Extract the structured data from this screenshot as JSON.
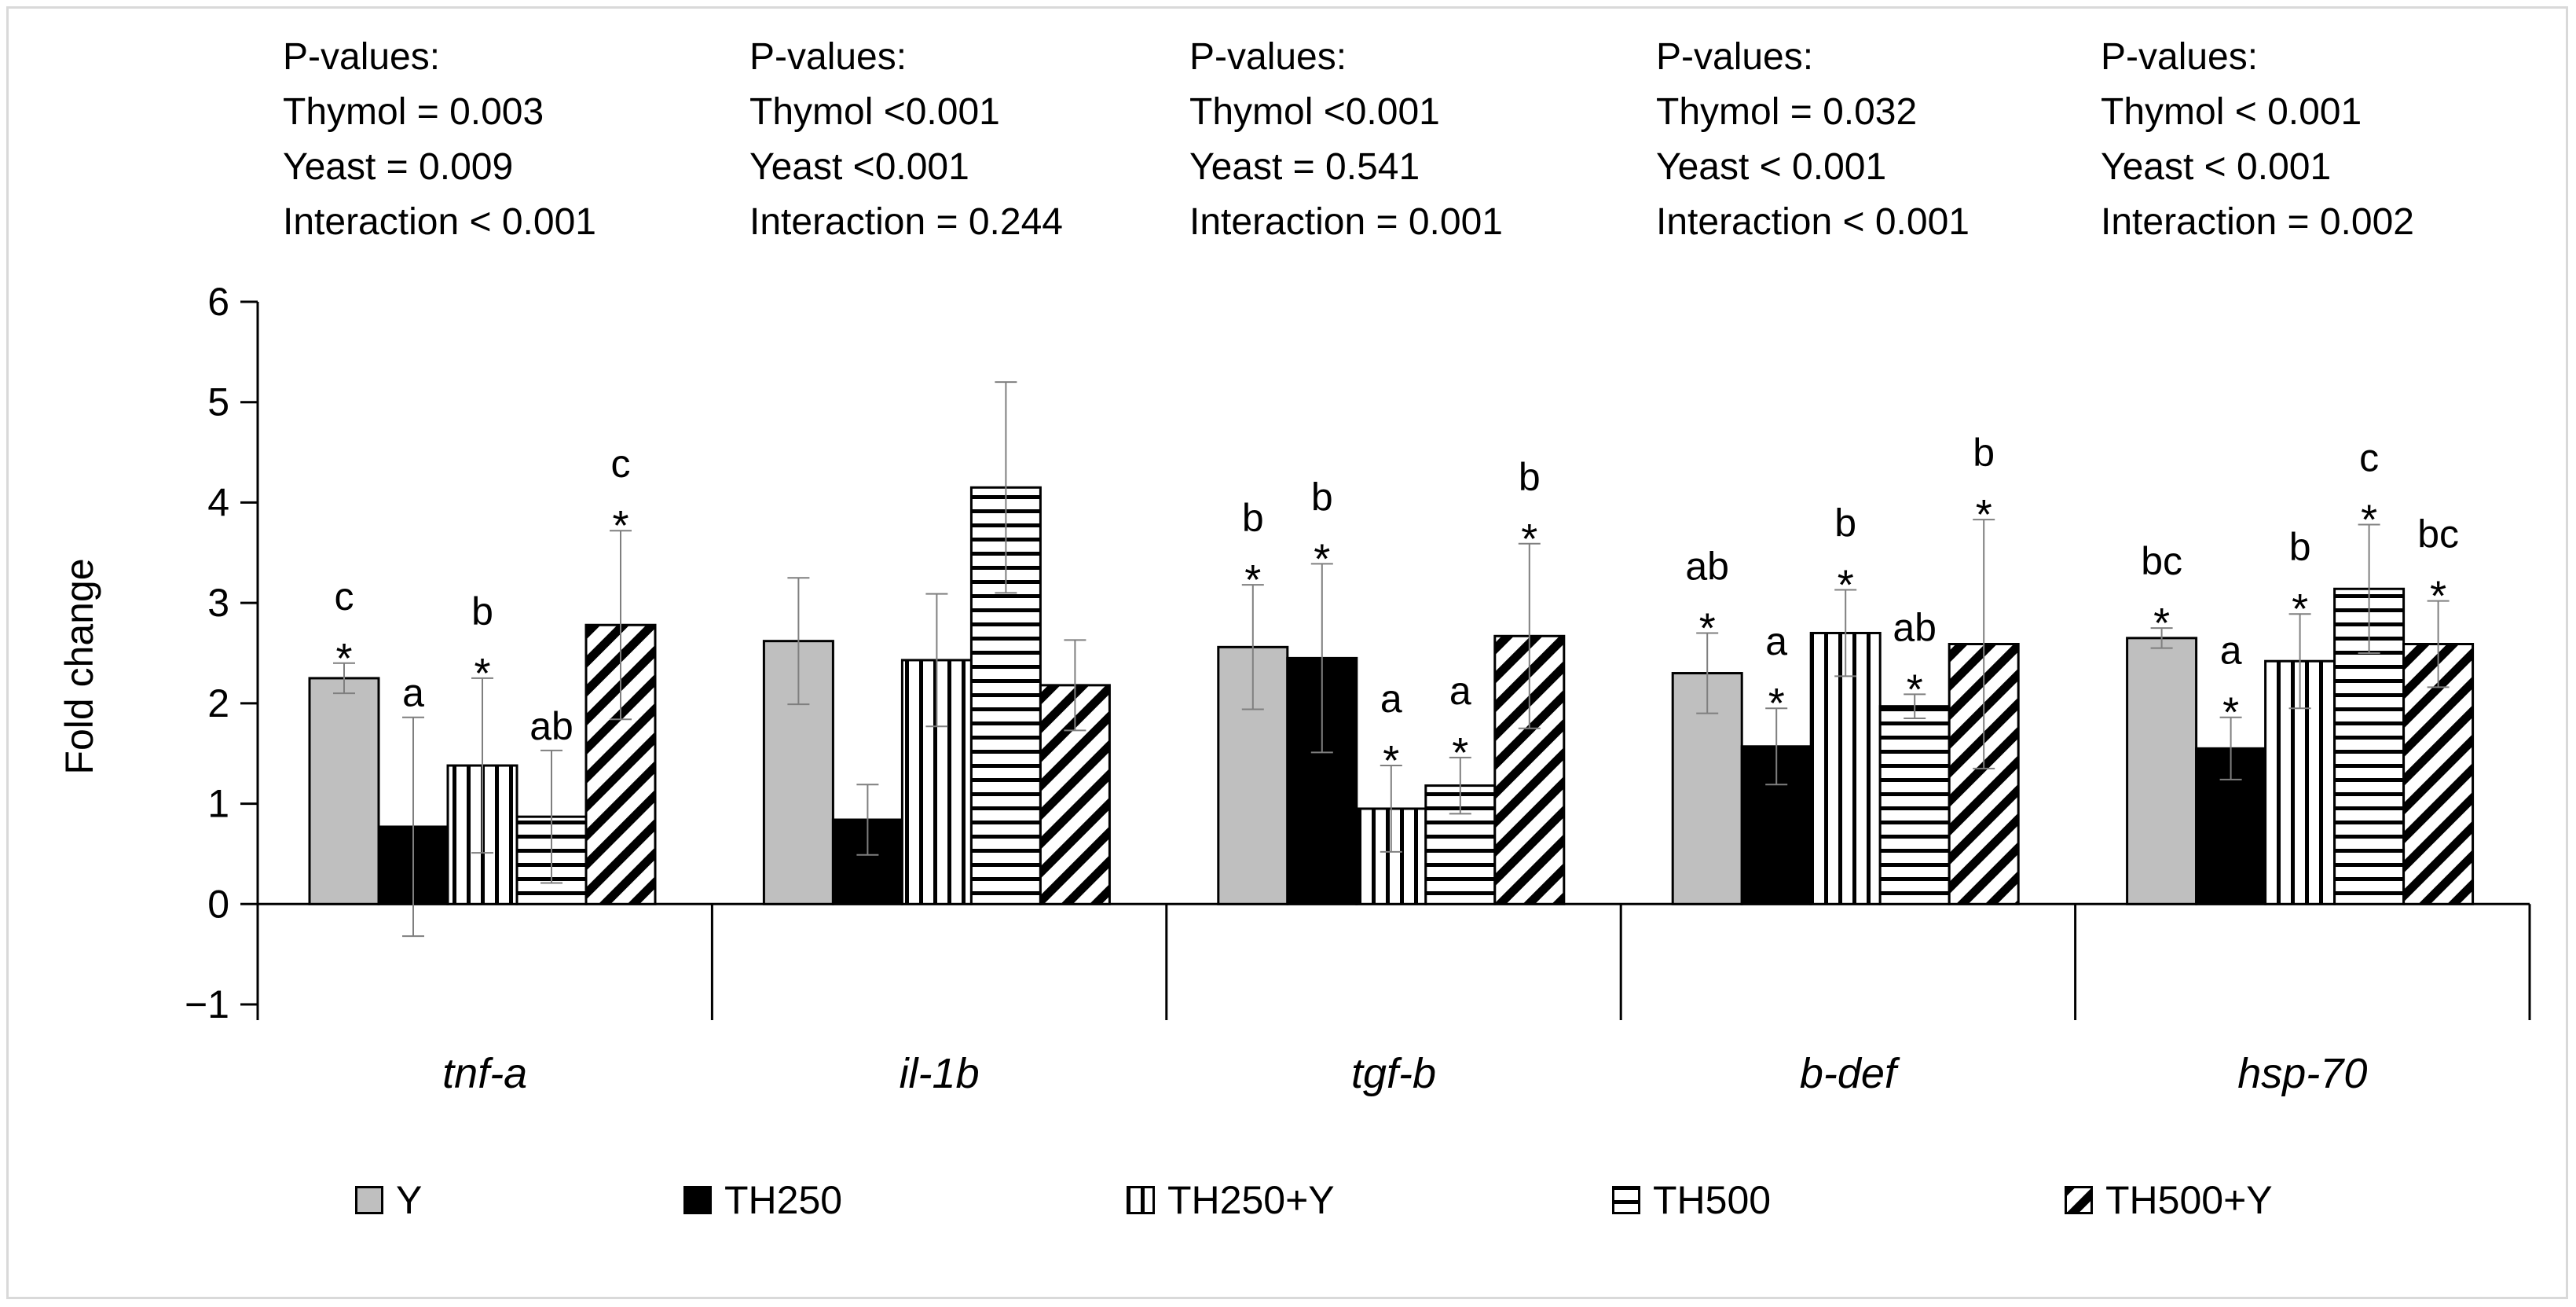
{
  "pvalue_labels": [
    {
      "heading": "P-values:",
      "thymol": "Thymol = 0.003",
      "yeast": "Yeast = 0.009",
      "interaction": "Interaction < 0.001"
    },
    {
      "heading": "P-values:",
      "thymol": "Thymol <0.001",
      "yeast": "Yeast <0.001",
      "interaction": "Interaction = 0.244"
    },
    {
      "heading": "P-values:",
      "thymol": "Thymol <0.001",
      "yeast": "Yeast = 0.541",
      "interaction": "Interaction = 0.001"
    },
    {
      "heading": "P-values:",
      "thymol": "Thymol = 0.032",
      "yeast": "Yeast < 0.001",
      "interaction": "Interaction < 0.001"
    },
    {
      "heading": "P-values:",
      "thymol": "Thymol < 0.001",
      "yeast": "Yeast < 0.001",
      "interaction": "Interaction = 0.002"
    }
  ],
  "chart_data": {
    "type": "bar",
    "title": "",
    "xlabel": "",
    "ylabel": "Fold change",
    "ylim": [
      -1,
      6
    ],
    "yticks": [
      -1,
      0,
      1,
      2,
      3,
      4,
      5,
      6
    ],
    "grid": false,
    "legend_position": "bottom",
    "categories": [
      "tnf-a",
      "il-1b",
      "tgf-b",
      "b-def",
      "hsp-70"
    ],
    "series": [
      {
        "name": "Y",
        "pattern": "gray",
        "values": [
          2.25,
          2.62,
          2.56,
          2.3,
          2.65
        ],
        "errors": [
          0.15,
          0.63,
          0.62,
          0.4,
          0.1
        ],
        "letters": [
          "c",
          "",
          "b",
          "ab",
          "bc"
        ],
        "stars": [
          true,
          false,
          true,
          true,
          true
        ]
      },
      {
        "name": "TH250",
        "pattern": "black",
        "values": [
          0.77,
          0.84,
          2.45,
          1.57,
          1.55
        ],
        "errors": [
          1.09,
          0.35,
          0.94,
          0.38,
          0.31
        ],
        "letters": [
          "a",
          "",
          "b",
          "a",
          "a"
        ],
        "stars": [
          false,
          false,
          true,
          true,
          true
        ]
      },
      {
        "name": "TH250+Y",
        "pattern": "vertical",
        "values": [
          1.38,
          2.43,
          0.95,
          2.7,
          2.42
        ],
        "errors": [
          0.87,
          0.66,
          0.43,
          0.43,
          0.47
        ],
        "letters": [
          "b",
          "",
          "a",
          "b",
          "b"
        ],
        "stars": [
          true,
          false,
          true,
          true,
          true
        ]
      },
      {
        "name": "TH500",
        "pattern": "horizontal",
        "values": [
          0.87,
          4.15,
          1.18,
          1.97,
          3.14
        ],
        "errors": [
          0.66,
          1.05,
          0.28,
          0.12,
          0.64
        ],
        "letters": [
          "ab",
          "",
          "a",
          "ab",
          "c"
        ],
        "stars": [
          false,
          false,
          true,
          true,
          true
        ]
      },
      {
        "name": "TH500+Y",
        "pattern": "diagonal",
        "values": [
          2.78,
          2.18,
          2.67,
          2.59,
          2.59
        ],
        "errors": [
          0.94,
          0.45,
          0.92,
          1.24,
          0.43
        ],
        "letters": [
          "c",
          "",
          "b",
          "b",
          "bc"
        ],
        "stars": [
          true,
          false,
          true,
          true,
          true
        ]
      }
    ]
  }
}
